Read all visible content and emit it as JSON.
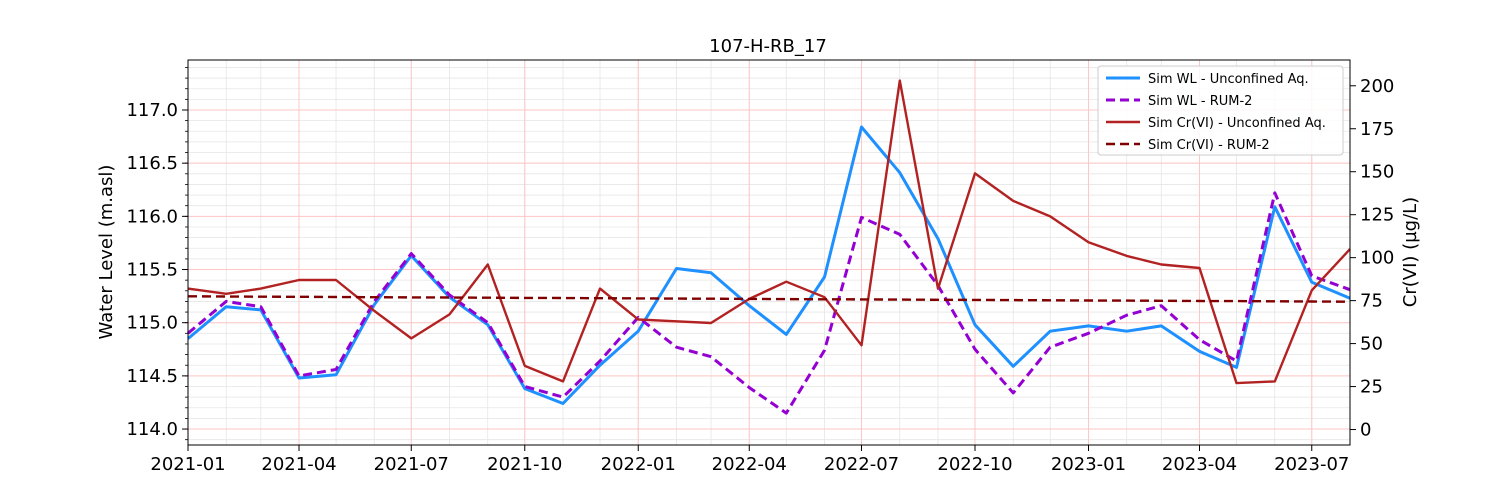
{
  "chart_data": {
    "type": "line",
    "title": "107-H-RB_17",
    "ylabel": "Water Level (m.asl)",
    "y2label": "Cr(VI) (µg/L)",
    "xlim": [
      "2021-01-01",
      "2023-08-01"
    ],
    "ylim": [
      113.85,
      117.47
    ],
    "y2lim": [
      -9,
      215
    ],
    "x_ticks": [
      {
        "date": "2021-01-01",
        "label": "2021-01"
      },
      {
        "date": "2021-04-01",
        "label": "2021-04"
      },
      {
        "date": "2021-07-01",
        "label": "2021-07"
      },
      {
        "date": "2021-10-01",
        "label": "2021-10"
      },
      {
        "date": "2022-01-01",
        "label": "2022-01"
      },
      {
        "date": "2022-04-01",
        "label": "2022-04"
      },
      {
        "date": "2022-07-01",
        "label": "2022-07"
      },
      {
        "date": "2022-10-01",
        "label": "2022-10"
      },
      {
        "date": "2023-01-01",
        "label": "2023-01"
      },
      {
        "date": "2023-04-01",
        "label": "2023-04"
      },
      {
        "date": "2023-07-01",
        "label": "2023-07"
      }
    ],
    "y_ticks": [
      114.0,
      114.5,
      115.0,
      115.5,
      116.0,
      116.5,
      117.0
    ],
    "y_tick_labels": [
      "114.0",
      "114.5",
      "115.0",
      "115.5",
      "116.0",
      "116.5",
      "117.0"
    ],
    "y2_ticks": [
      0,
      25,
      50,
      75,
      100,
      125,
      150,
      175,
      200
    ],
    "y2_tick_labels": [
      "0",
      "25",
      "50",
      "75",
      "100",
      "125",
      "150",
      "175",
      "200"
    ],
    "grid": true,
    "legend_position": "top-right",
    "x": [
      "2021-01-01",
      "2021-02-01",
      "2021-03-01",
      "2021-04-01",
      "2021-05-01",
      "2021-06-01",
      "2021-07-01",
      "2021-08-01",
      "2021-09-01",
      "2021-10-01",
      "2021-11-01",
      "2021-12-01",
      "2022-01-01",
      "2022-02-01",
      "2022-03-01",
      "2022-04-01",
      "2022-05-01",
      "2022-06-01",
      "2022-07-01",
      "2022-08-01",
      "2022-09-01",
      "2022-10-01",
      "2022-11-01",
      "2022-12-01",
      "2023-01-01",
      "2023-02-01",
      "2023-03-01",
      "2023-04-01",
      "2023-05-01",
      "2023-06-01",
      "2023-07-01",
      "2023-08-01"
    ],
    "series": [
      {
        "name": "Sim WL - Unconfined Aq.",
        "axis": "left",
        "color": "#1e90ff",
        "style": "solid",
        "values": [
          114.85,
          115.15,
          115.12,
          114.48,
          114.51,
          115.17,
          115.63,
          115.24,
          114.98,
          114.38,
          114.24,
          114.6,
          114.92,
          115.51,
          115.47,
          115.16,
          114.89,
          115.43,
          116.84,
          116.41,
          115.79,
          114.98,
          114.59,
          114.92,
          114.97,
          114.92,
          114.97,
          114.73,
          114.58,
          116.09,
          115.38,
          115.23
        ]
      },
      {
        "name": "Sim WL - RUM-2",
        "axis": "left",
        "color": "#9400d3",
        "style": "dashed",
        "values": [
          114.9,
          115.2,
          115.15,
          114.5,
          114.56,
          115.2,
          115.65,
          115.26,
          115.0,
          114.4,
          114.3,
          114.64,
          115.05,
          114.77,
          114.68,
          114.39,
          114.15,
          114.74,
          115.99,
          115.83,
          115.35,
          114.75,
          114.34,
          114.77,
          114.9,
          115.07,
          115.16,
          114.84,
          114.64,
          116.22,
          115.44,
          115.31
        ]
      },
      {
        "name": "Sim Cr(VI) - Unconfined Aq.",
        "axis": "right",
        "color": "#b22222",
        "style": "solid",
        "values": [
          82,
          79,
          82,
          87,
          87,
          69,
          53,
          67,
          96,
          37,
          28,
          82,
          64,
          63,
          62,
          76,
          86,
          77,
          49,
          203,
          82,
          149,
          133,
          124,
          109,
          101,
          96,
          94,
          27,
          28,
          81,
          105
        ]
      },
      {
        "name": "Sim Cr(VI) - RUM-2",
        "axis": "right",
        "color": "#800000",
        "style": "dashed",
        "values": [
          77.5,
          77.4,
          77.3,
          77.2,
          77.1,
          77.0,
          76.9,
          76.8,
          76.7,
          76.6,
          76.5,
          76.4,
          76.3,
          76.2,
          76.1,
          76.0,
          75.9,
          75.8,
          75.7,
          75.6,
          75.5,
          75.4,
          75.3,
          75.2,
          75.1,
          75.0,
          74.9,
          74.8,
          74.7,
          74.6,
          74.5,
          74.4
        ]
      }
    ]
  }
}
